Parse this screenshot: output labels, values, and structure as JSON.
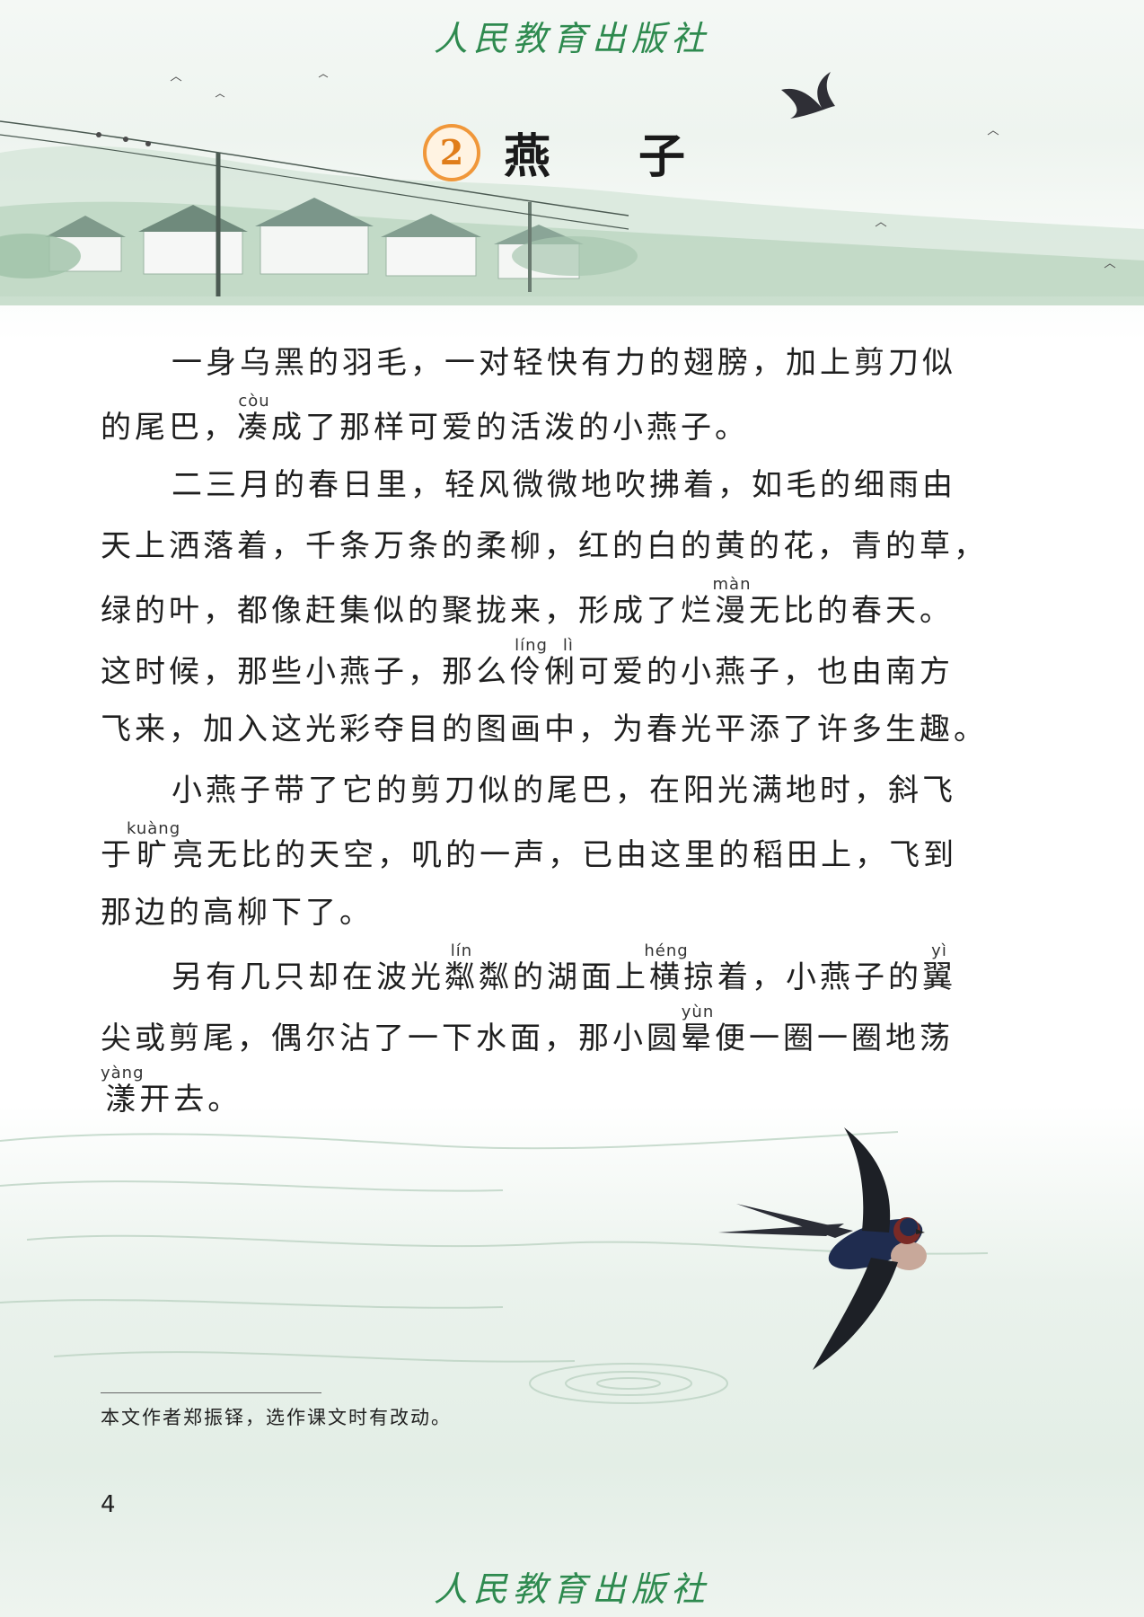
{
  "publisher": {
    "name": "人民教育出版社"
  },
  "lesson": {
    "number": "2",
    "title": "燕  子"
  },
  "paragraphs": [
    {
      "lines": [
        {
          "text": "一身乌黑的羽毛，一对轻快有力的翅膀，加上剪刀似"
        },
        {
          "pre": "的尾巴，",
          "ruby_char": "凑",
          "ruby_pinyin": "còu",
          "post": "成了那样可爱的活泼的小燕子。"
        }
      ]
    },
    {
      "lines": [
        {
          "text": "二三月的春日里，轻风微微地吹拂着，如毛的细雨由"
        },
        {
          "text": "天上洒落着，千条万条的柔柳，红的白的黄的花，青的草，"
        },
        {
          "pre": "绿的叶，都像赶集似的聚拢来，形成了烂",
          "ruby_char": "漫",
          "ruby_pinyin": "màn",
          "post": "无比的春天。"
        },
        {
          "pre": "这时候，那些小燕子，那么",
          "ruby_char": "伶俐",
          "ruby_pinyin": "líng lì",
          "post": "可爱的小燕子，也由南方"
        },
        {
          "text": "飞来，加入这光彩夺目的图画中，为春光平添了许多生趣。"
        }
      ]
    },
    {
      "lines": [
        {
          "text": "小燕子带了它的剪刀似的尾巴，在阳光满地时，斜飞"
        },
        {
          "pre": "于",
          "ruby_char": "旷",
          "ruby_pinyin": "kuàng",
          "post": "亮无比的天空，叽的一声，已由这里的稻田上，飞到"
        },
        {
          "text": "那边的高柳下了。"
        }
      ]
    },
    {
      "lines": [
        {
          "pre": "另有几只却在波光",
          "ruby_char": "粼",
          "ruby_pinyin": "lín",
          "mid1": "粼的湖面上",
          "ruby_char2": "横",
          "ruby_pinyin2": "héng",
          "mid2": "掠着，小燕子的",
          "ruby_char3": "翼",
          "ruby_pinyin3": "yì",
          "post": ""
        },
        {
          "pre": "尖或剪尾，偶尔沾了一下水面，那小圆",
          "ruby_char": "晕",
          "ruby_pinyin": "yùn",
          "post": "便一圈一圈地荡"
        },
        {
          "pre": "",
          "ruby_char": "漾",
          "ruby_pinyin": "yàng",
          "post": "开去。"
        }
      ]
    }
  ],
  "footnote": "本文作者郑振铎，选作课文时有改动。",
  "page_number": "4"
}
